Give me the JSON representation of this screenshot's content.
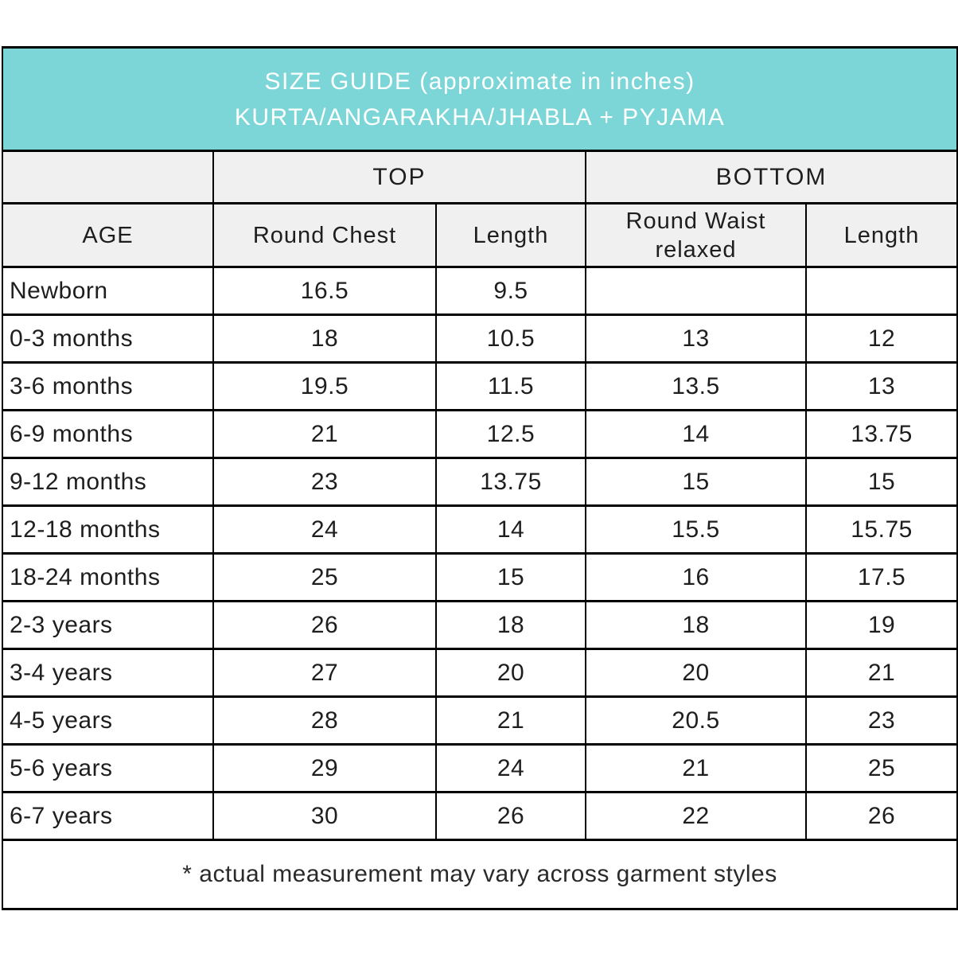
{
  "title": {
    "line1": "SIZE GUIDE (approximate in inches)",
    "line2": "KURTA/ANGARAKHA/JHABLA + PYJAMA"
  },
  "groups": {
    "top": "TOP",
    "bottom": "BOTTOM"
  },
  "columns": {
    "age": "AGE",
    "round_chest": "Round Chest",
    "top_length": "Length",
    "round_waist": "Round Waist relaxed",
    "bottom_length": "Length"
  },
  "footnote": "* actual measurement may vary across garment styles",
  "colors": {
    "title_bg": "#7cd6d8",
    "title_text": "#ffffff",
    "subheader_bg": "#f0f0f0",
    "border": "#000000",
    "text": "#1e1e1e"
  },
  "chart_data": {
    "type": "table",
    "title": "SIZE GUIDE (approximate in inches) KURTA/ANGARAKHA/JHABLA + PYJAMA",
    "column_groups": [
      {
        "label": "",
        "columns": [
          "AGE"
        ]
      },
      {
        "label": "TOP",
        "columns": [
          "Round Chest",
          "Length"
        ]
      },
      {
        "label": "BOTTOM",
        "columns": [
          "Round Waist relaxed",
          "Length"
        ]
      }
    ],
    "columns": [
      "AGE",
      "Round Chest",
      "Length",
      "Round Waist relaxed",
      "Length"
    ],
    "rows": [
      [
        "Newborn",
        "16.5",
        "9.5",
        "",
        ""
      ],
      [
        "0-3 months",
        "18",
        "10.5",
        "13",
        "12"
      ],
      [
        "3-6 months",
        "19.5",
        "11.5",
        "13.5",
        "13"
      ],
      [
        "6-9 months",
        "21",
        "12.5",
        "14",
        "13.75"
      ],
      [
        "9-12 months",
        "23",
        "13.75",
        "15",
        "15"
      ],
      [
        "12-18 months",
        "24",
        "14",
        "15.5",
        "15.75"
      ],
      [
        "18-24 months",
        "25",
        "15",
        "16",
        "17.5"
      ],
      [
        "2-3 years",
        "26",
        "18",
        "18",
        "19"
      ],
      [
        "3-4 years",
        "27",
        "20",
        "20",
        "21"
      ],
      [
        "4-5 years",
        "28",
        "21",
        "20.5",
        "23"
      ],
      [
        "5-6 years",
        "29",
        "24",
        "21",
        "25"
      ],
      [
        "6-7 years",
        "30",
        "26",
        "22",
        "26"
      ]
    ],
    "footnote": "* actual measurement may vary across garment styles"
  }
}
